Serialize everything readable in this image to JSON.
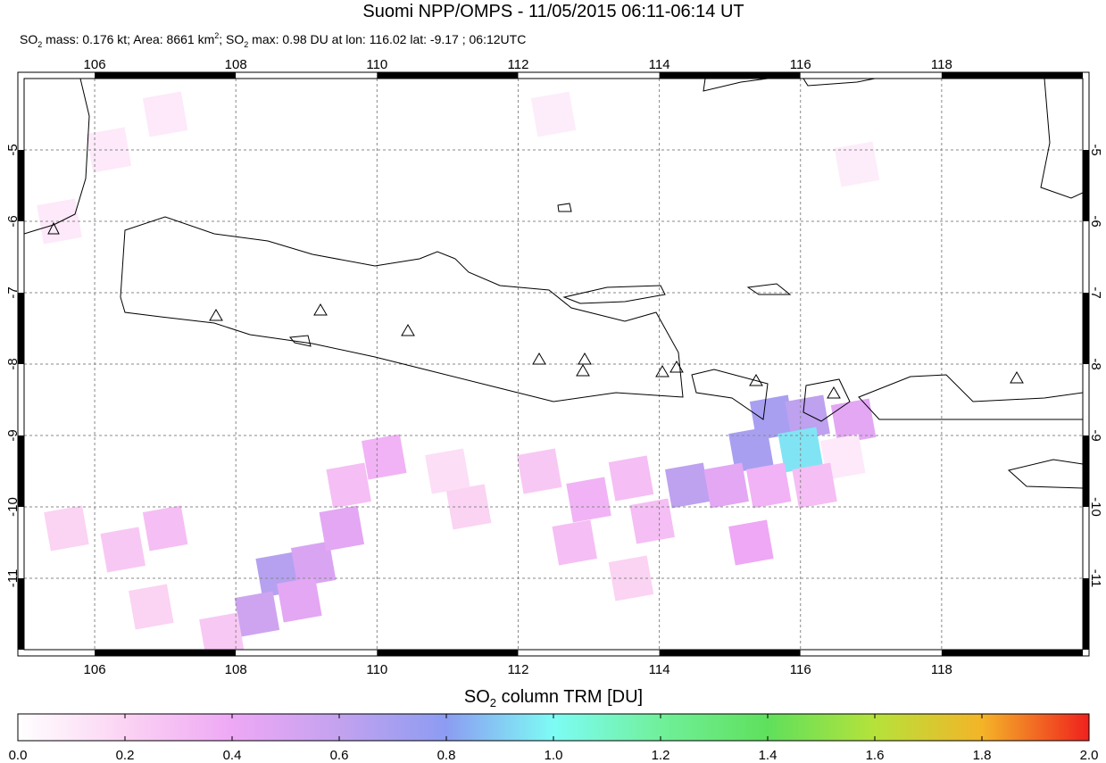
{
  "title": "Suomi NPP/OMPS - 11/05/2015 06:11-06:14 UT",
  "subtitle_parts": [
    "SO",
    "2",
    " mass: 0.176 kt; Area: 8661 km",
    "2",
    "; SO",
    "2",
    " max: 0.98 DU at lon: 116.02 lat: -9.17 ; 06:12UTC"
  ],
  "map": {
    "xlim": [
      105,
      120
    ],
    "ylim": [
      -4,
      -12
    ],
    "xticks": [
      106,
      108,
      110,
      112,
      114,
      116,
      118
    ],
    "yticks": [
      -5,
      -6,
      -7,
      -8,
      -9,
      -10,
      -11
    ],
    "grid": true,
    "cells": [
      {
        "lon": 115.6,
        "lat": -8.75,
        "value": 0.7
      },
      {
        "lon": 116.1,
        "lat": -8.75,
        "value": 0.62
      },
      {
        "lon": 116.75,
        "lat": -8.8,
        "value": 0.45
      },
      {
        "lon": 115.3,
        "lat": -9.2,
        "value": 0.7
      },
      {
        "lon": 116.0,
        "lat": -9.2,
        "value": 0.95
      },
      {
        "lon": 116.6,
        "lat": -9.3,
        "value": 0.1
      },
      {
        "lon": 114.4,
        "lat": -9.7,
        "value": 0.62
      },
      {
        "lon": 114.95,
        "lat": -9.7,
        "value": 0.45
      },
      {
        "lon": 115.55,
        "lat": -9.7,
        "value": 0.35
      },
      {
        "lon": 116.2,
        "lat": -9.7,
        "value": 0.3
      },
      {
        "lon": 113.6,
        "lat": -9.6,
        "value": 0.3
      },
      {
        "lon": 113.0,
        "lat": -9.9,
        "value": 0.35
      },
      {
        "lon": 112.3,
        "lat": -9.5,
        "value": 0.25
      },
      {
        "lon": 115.3,
        "lat": -10.5,
        "value": 0.4
      },
      {
        "lon": 113.9,
        "lat": -10.2,
        "value": 0.3
      },
      {
        "lon": 108.6,
        "lat": -10.95,
        "value": 0.65
      },
      {
        "lon": 109.1,
        "lat": -10.8,
        "value": 0.5
      },
      {
        "lon": 108.3,
        "lat": -11.5,
        "value": 0.55
      },
      {
        "lon": 108.9,
        "lat": -11.3,
        "value": 0.45
      },
      {
        "lon": 109.5,
        "lat": -10.3,
        "value": 0.45
      },
      {
        "lon": 110.1,
        "lat": -9.3,
        "value": 0.35
      },
      {
        "lon": 109.6,
        "lat": -9.7,
        "value": 0.3
      },
      {
        "lon": 107.0,
        "lat": -10.3,
        "value": 0.3
      },
      {
        "lon": 106.4,
        "lat": -10.6,
        "value": 0.25
      },
      {
        "lon": 105.6,
        "lat": -10.3,
        "value": 0.2
      },
      {
        "lon": 107.8,
        "lat": -11.8,
        "value": 0.25
      },
      {
        "lon": 106.8,
        "lat": -11.4,
        "value": 0.2
      },
      {
        "lon": 111.3,
        "lat": -10.0,
        "value": 0.2
      },
      {
        "lon": 112.8,
        "lat": -10.5,
        "value": 0.3
      },
      {
        "lon": 113.6,
        "lat": -11.0,
        "value": 0.2
      },
      {
        "lon": 111.0,
        "lat": -9.5,
        "value": 0.15
      },
      {
        "lon": 105.5,
        "lat": -6.0,
        "value": 0.1
      },
      {
        "lon": 106.2,
        "lat": -5.0,
        "value": 0.1
      },
      {
        "lon": 107.0,
        "lat": -4.5,
        "value": 0.1
      },
      {
        "lon": 116.8,
        "lat": -5.2,
        "value": 0.08
      },
      {
        "lon": 112.5,
        "lat": -4.5,
        "value": 0.08
      }
    ]
  },
  "colorbar": {
    "label_parts": [
      "SO",
      "2",
      " column TRM [DU]"
    ],
    "lim": [
      0,
      2
    ],
    "ticks": [
      {
        "value": 0,
        "label": "0.0"
      },
      {
        "value": 0.2,
        "label": "0.2"
      },
      {
        "value": 0.4,
        "label": "0.4"
      },
      {
        "value": 0.6,
        "label": "0.6"
      },
      {
        "value": 0.8,
        "label": "0.8"
      },
      {
        "value": 1,
        "label": "1.0"
      },
      {
        "value": 1.2,
        "label": "1.2"
      },
      {
        "value": 1.4,
        "label": "1.4"
      },
      {
        "value": 1.6,
        "label": "1.6"
      },
      {
        "value": 1.8,
        "label": "1.8"
      },
      {
        "value": 2,
        "label": "2.0"
      }
    ],
    "colormap": [
      {
        "value": 0,
        "color": "#ffffff"
      },
      {
        "value": 0.2,
        "color": "#fbd3f3"
      },
      {
        "value": 0.4,
        "color": "#eea8f5"
      },
      {
        "value": 0.6,
        "color": "#c3a2ef"
      },
      {
        "value": 0.8,
        "color": "#8c9cf2"
      },
      {
        "value": 1,
        "color": "#7dfcf5"
      },
      {
        "value": 1.2,
        "color": "#70f09a"
      },
      {
        "value": 1.4,
        "color": "#5fe05c"
      },
      {
        "value": 1.6,
        "color": "#b6e23a"
      },
      {
        "value": 1.8,
        "color": "#f4b428"
      },
      {
        "value": 2,
        "color": "#f0201e"
      }
    ]
  }
}
